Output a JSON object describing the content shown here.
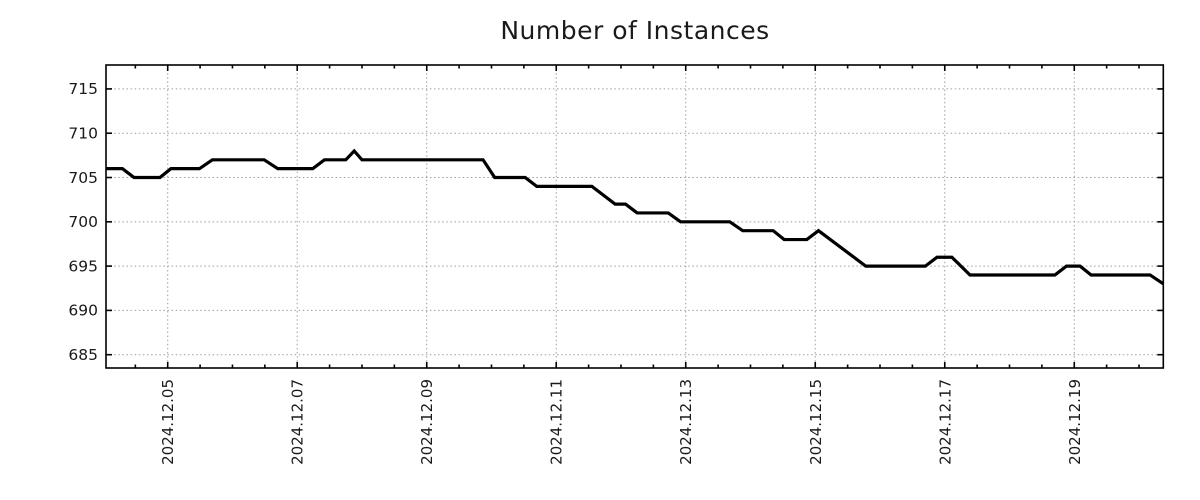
{
  "title": "Number of Instances",
  "colors": {
    "line": "#000000",
    "grid": "#9e9e9e",
    "border": "#000000",
    "background": "#ffffff",
    "text": "#1a1a1a"
  },
  "chart_data": {
    "type": "line",
    "title": "Number of Instances",
    "xlabel": "",
    "ylabel": "",
    "x_unit": "day of December 2024 (decimal)",
    "xlim": [
      4.047,
      20.375
    ],
    "ylim": [
      683.5,
      717.7
    ],
    "grid": true,
    "legend": null,
    "x_major_ticks": [
      {
        "value": 5,
        "label": "2024.12.05"
      },
      {
        "value": 7,
        "label": "2024.12.07"
      },
      {
        "value": 9,
        "label": "2024.12.09"
      },
      {
        "value": 11,
        "label": "2024.12.11"
      },
      {
        "value": 13,
        "label": "2024.12.13"
      },
      {
        "value": 15,
        "label": "2024.12.15"
      },
      {
        "value": 17,
        "label": "2024.12.17"
      },
      {
        "value": 19,
        "label": "2024.12.19"
      }
    ],
    "x_minor_tick_interval": 0.5,
    "y_ticks": [
      685,
      690,
      695,
      700,
      705,
      710,
      715
    ],
    "series": [
      {
        "name": "instances",
        "color": "#000000",
        "points": [
          [
            4.047,
            706
          ],
          [
            4.3,
            706
          ],
          [
            4.48,
            705
          ],
          [
            4.88,
            705
          ],
          [
            5.05,
            706
          ],
          [
            5.49,
            706
          ],
          [
            5.69,
            707
          ],
          [
            6.49,
            707
          ],
          [
            6.7,
            706
          ],
          [
            7.24,
            706
          ],
          [
            7.42,
            707
          ],
          [
            7.75,
            707
          ],
          [
            7.88,
            708
          ],
          [
            8.0,
            707
          ],
          [
            9.87,
            707
          ],
          [
            10.05,
            705
          ],
          [
            10.52,
            705
          ],
          [
            10.7,
            704
          ],
          [
            11.55,
            704
          ],
          [
            11.91,
            702
          ],
          [
            12.07,
            702
          ],
          [
            12.25,
            701
          ],
          [
            12.73,
            701
          ],
          [
            12.92,
            700
          ],
          [
            13.68,
            700
          ],
          [
            13.88,
            699
          ],
          [
            14.35,
            699
          ],
          [
            14.52,
            698
          ],
          [
            14.87,
            698
          ],
          [
            15.05,
            699
          ],
          [
            15.78,
            695
          ],
          [
            16.7,
            695
          ],
          [
            16.88,
            696
          ],
          [
            17.11,
            696
          ],
          [
            17.39,
            694
          ],
          [
            18.7,
            694
          ],
          [
            18.88,
            695
          ],
          [
            19.09,
            695
          ],
          [
            19.26,
            694
          ],
          [
            20.17,
            694
          ],
          [
            20.375,
            693
          ]
        ]
      }
    ]
  }
}
